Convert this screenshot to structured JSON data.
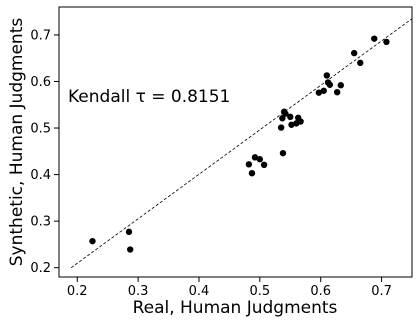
{
  "chart_data": {
    "type": "scatter",
    "xlabel": "Real, Human Judgments",
    "ylabel": "Synthetic, Human Judgments",
    "annotation": "Kendall τ = 0.8151",
    "xlim": [
      0.17,
      0.75
    ],
    "ylim": [
      0.18,
      0.76
    ],
    "xticks": [
      0.2,
      0.3,
      0.4,
      0.5,
      0.6,
      0.7
    ],
    "yticks": [
      0.2,
      0.3,
      0.4,
      0.5,
      0.6,
      0.7
    ],
    "xtick_labels": [
      "0.2",
      "0.3",
      "0.4",
      "0.5",
      "0.6",
      "0.7"
    ],
    "ytick_labels": [
      "0.2",
      "0.3",
      "0.4",
      "0.5",
      "0.6",
      "0.7"
    ],
    "grid": false,
    "reference_line": {
      "style": "dashed",
      "from": [
        0.19,
        0.2
      ],
      "to": [
        0.75,
        0.735
      ]
    },
    "point_color": "#000000",
    "points": [
      {
        "x": 0.225,
        "y": 0.257
      },
      {
        "x": 0.285,
        "y": 0.277
      },
      {
        "x": 0.287,
        "y": 0.239
      },
      {
        "x": 0.482,
        "y": 0.422
      },
      {
        "x": 0.487,
        "y": 0.403
      },
      {
        "x": 0.492,
        "y": 0.437
      },
      {
        "x": 0.5,
        "y": 0.433
      },
      {
        "x": 0.507,
        "y": 0.421
      },
      {
        "x": 0.535,
        "y": 0.501
      },
      {
        "x": 0.537,
        "y": 0.521
      },
      {
        "x": 0.538,
        "y": 0.446
      },
      {
        "x": 0.54,
        "y": 0.535
      },
      {
        "x": 0.542,
        "y": 0.531
      },
      {
        "x": 0.55,
        "y": 0.524
      },
      {
        "x": 0.552,
        "y": 0.507
      },
      {
        "x": 0.56,
        "y": 0.51
      },
      {
        "x": 0.563,
        "y": 0.522
      },
      {
        "x": 0.567,
        "y": 0.514
      },
      {
        "x": 0.597,
        "y": 0.576
      },
      {
        "x": 0.605,
        "y": 0.58
      },
      {
        "x": 0.61,
        "y": 0.613
      },
      {
        "x": 0.612,
        "y": 0.598
      },
      {
        "x": 0.615,
        "y": 0.593
      },
      {
        "x": 0.627,
        "y": 0.577
      },
      {
        "x": 0.633,
        "y": 0.592
      },
      {
        "x": 0.655,
        "y": 0.661
      },
      {
        "x": 0.665,
        "y": 0.64
      },
      {
        "x": 0.688,
        "y": 0.692
      },
      {
        "x": 0.708,
        "y": 0.685
      }
    ]
  }
}
